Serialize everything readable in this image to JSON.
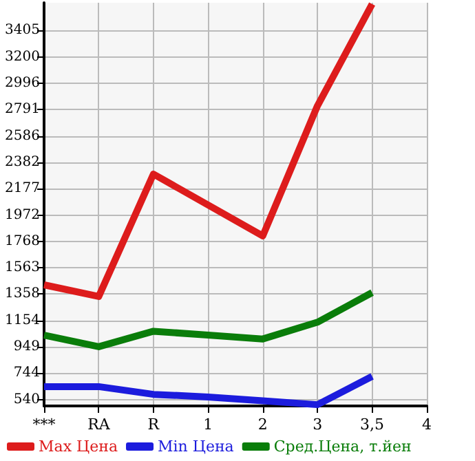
{
  "chart_data": {
    "type": "line",
    "categories": [
      "***",
      "RA",
      "R",
      "1",
      "2",
      "3",
      "3,5",
      "4"
    ],
    "series": [
      {
        "name": "Max Цена",
        "color": "#dd1c1c",
        "values": [
          1430,
          1340,
          2290,
          null,
          1810,
          2820,
          3610,
          null
        ]
      },
      {
        "name": "Min Цена",
        "color": "#1c1cdd",
        "values": [
          640,
          640,
          580,
          560,
          530,
          500,
          720,
          null
        ]
      },
      {
        "name": "Сред.Цена, т.йен",
        "color": "#0a7d0a",
        "values": [
          1040,
          950,
          1070,
          1040,
          1010,
          1140,
          1370,
          null
        ]
      }
    ],
    "ylim": [
      490,
      3620
    ],
    "yticks": [
      540,
      744,
      949,
      1154,
      1358,
      1563,
      1768,
      1972,
      2177,
      2382,
      2586,
      2791,
      2996,
      3200,
      3405
    ],
    "grid": true,
    "legend": "bottom",
    "marker": "none",
    "line_style": "solid"
  }
}
